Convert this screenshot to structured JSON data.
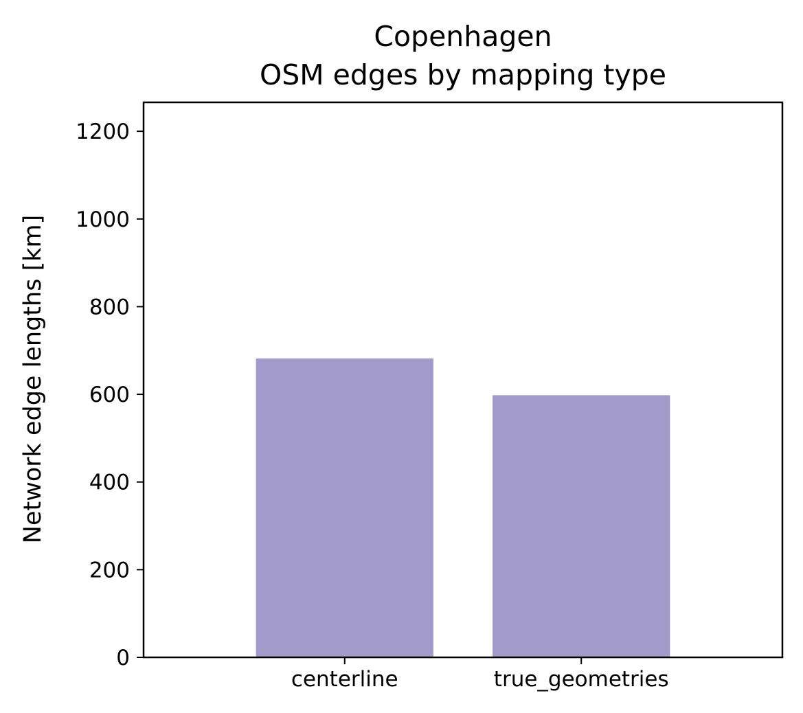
{
  "chart_data": {
    "type": "bar",
    "title_lines": [
      "Copenhagen",
      "OSM edges by mapping type"
    ],
    "xlabel": "",
    "ylabel": "Network edge lengths [km]",
    "categories": [
      "centerline",
      "true_geometries"
    ],
    "values": [
      682,
      598
    ],
    "ylim": [
      0,
      1266
    ],
    "yticks": [
      0,
      200,
      400,
      600,
      800,
      1000,
      1200
    ],
    "grid": false,
    "legend": "none",
    "colors": {
      "bar": "#a29bca",
      "axis": "#000000",
      "background": "#ffffff"
    }
  }
}
